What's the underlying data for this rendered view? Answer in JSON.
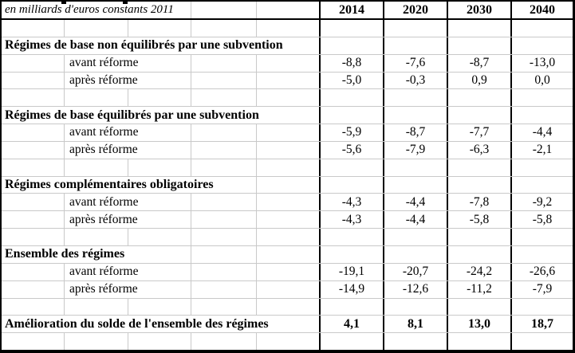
{
  "table": {
    "unit_label": "en milliards d'euros constants 2011",
    "years": [
      "2014",
      "2020",
      "2030",
      "2040"
    ],
    "sections": [
      {
        "title": "Régimes de base non équilibrés par une subvention",
        "rows": [
          {
            "label": "avant réforme",
            "values": [
              "-8,8",
              "-7,6",
              "-8,7",
              "-13,0"
            ]
          },
          {
            "label": "après réforme",
            "values": [
              "-5,0",
              "-0,3",
              "0,9",
              "0,0"
            ]
          }
        ]
      },
      {
        "title": "Régimes de base équilibrés par une subvention",
        "rows": [
          {
            "label": "avant réforme",
            "values": [
              "-5,9",
              "-8,7",
              "-7,7",
              "-4,4"
            ]
          },
          {
            "label": "après réforme",
            "values": [
              "-5,6",
              "-7,9",
              "-6,3",
              "-2,1"
            ]
          }
        ]
      },
      {
        "title": "Régimes complémentaires obligatoires",
        "rows": [
          {
            "label": "avant réforme",
            "values": [
              "-4,3",
              "-4,4",
              "-7,8",
              "-9,2"
            ]
          },
          {
            "label": "après réforme",
            "values": [
              "-4,3",
              "-4,4",
              "-5,8",
              "-5,8"
            ]
          }
        ]
      },
      {
        "title": "Ensemble des régimes",
        "rows": [
          {
            "label": "avant réforme",
            "values": [
              "-19,1",
              "-20,7",
              "-24,2",
              "-26,6"
            ]
          },
          {
            "label": "après réforme",
            "values": [
              "-14,9",
              "-12,6",
              "-11,2",
              "-7,9"
            ]
          }
        ]
      }
    ],
    "summary": {
      "label": "Amélioration du solde de l'ensemble des régimes",
      "values": [
        "4,1",
        "8,1",
        "13,0",
        "18,7"
      ]
    },
    "colors": {
      "text": "#000000",
      "thick_border": "#000000",
      "faint_gridline": "#c9c9c9",
      "background": "#ffffff"
    }
  }
}
